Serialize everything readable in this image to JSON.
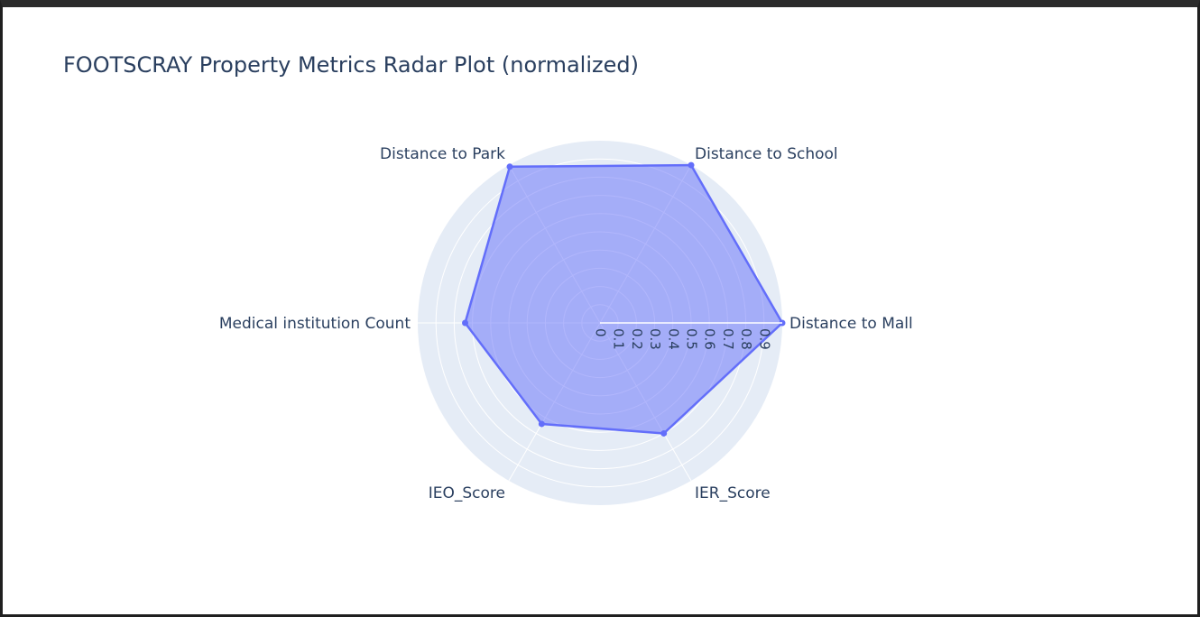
{
  "chart_data": {
    "type": "radar",
    "title": "FOOTSCRAY Property Metrics Radar Plot (normalized)",
    "categories": [
      "Distance to Mall",
      "Distance to School",
      "Distance to Park",
      "Medical institution Count",
      "IEO_Score",
      "IER_Score"
    ],
    "series": [
      {
        "values": [
          1.0,
          1.0,
          0.99,
          0.74,
          0.64,
          0.7
        ],
        "color": "#636efa"
      }
    ],
    "radial_ticks": [
      "0",
      "0.1",
      "0.2",
      "0.3",
      "0.4",
      "0.5",
      "0.6",
      "0.7",
      "0.8",
      "0.9"
    ],
    "radial_range": [
      0,
      1.0
    ],
    "grid": true,
    "legend": "none"
  }
}
